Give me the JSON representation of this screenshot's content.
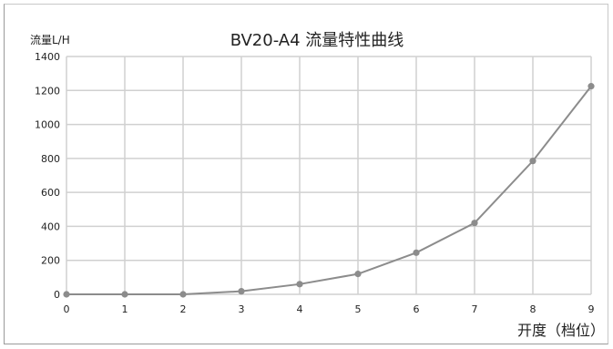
{
  "chart_data": {
    "type": "line",
    "title": "BV20-A4 流量特性曲线",
    "xlabel": "开度（档位）",
    "ylabel": "流量L/H",
    "x": [
      0,
      1,
      2,
      3,
      4,
      5,
      6,
      7,
      8,
      9
    ],
    "series": [
      {
        "values": [
          0,
          0,
          0,
          18,
          60,
          120,
          245,
          420,
          785,
          1225
        ]
      }
    ],
    "xlim": [
      0,
      9
    ],
    "ylim": [
      0,
      1400
    ],
    "yticks": [
      0,
      200,
      400,
      600,
      800,
      1000,
      1200,
      1400
    ],
    "xticks": [
      0,
      1,
      2,
      3,
      4,
      5,
      6,
      7,
      8,
      9
    ],
    "grid": true,
    "line_color": "#8c8c8c",
    "grid_color": "#d0d0d0"
  }
}
